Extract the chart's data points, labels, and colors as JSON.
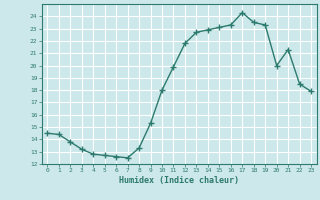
{
  "x": [
    0,
    1,
    2,
    3,
    4,
    5,
    6,
    7,
    8,
    9,
    10,
    11,
    12,
    13,
    14,
    15,
    16,
    17,
    18,
    19,
    20,
    21,
    22,
    23
  ],
  "y": [
    14.5,
    14.4,
    13.8,
    13.2,
    12.8,
    12.7,
    12.6,
    12.5,
    13.3,
    15.3,
    18.0,
    19.9,
    21.8,
    22.7,
    22.9,
    23.1,
    23.3,
    24.3,
    23.5,
    23.3,
    20.0,
    21.3,
    18.5,
    17.9
  ],
  "xlabel": "Humidex (Indice chaleur)",
  "ylim": [
    12,
    25
  ],
  "yticks": [
    12,
    13,
    14,
    15,
    16,
    17,
    18,
    19,
    20,
    21,
    22,
    23,
    24
  ],
  "xticks": [
    0,
    1,
    2,
    3,
    4,
    5,
    6,
    7,
    8,
    9,
    10,
    11,
    12,
    13,
    14,
    15,
    16,
    17,
    18,
    19,
    20,
    21,
    22,
    23
  ],
  "line_color": "#2d7a6e",
  "marker_color": "#2d7a6e",
  "bg_color": "#cce8ea",
  "grid_color": "#ffffff",
  "tick_label_color": "#2d7a6e",
  "xlabel_color": "#2d7a6e",
  "marker": "+",
  "linewidth": 1.0,
  "markersize": 4
}
